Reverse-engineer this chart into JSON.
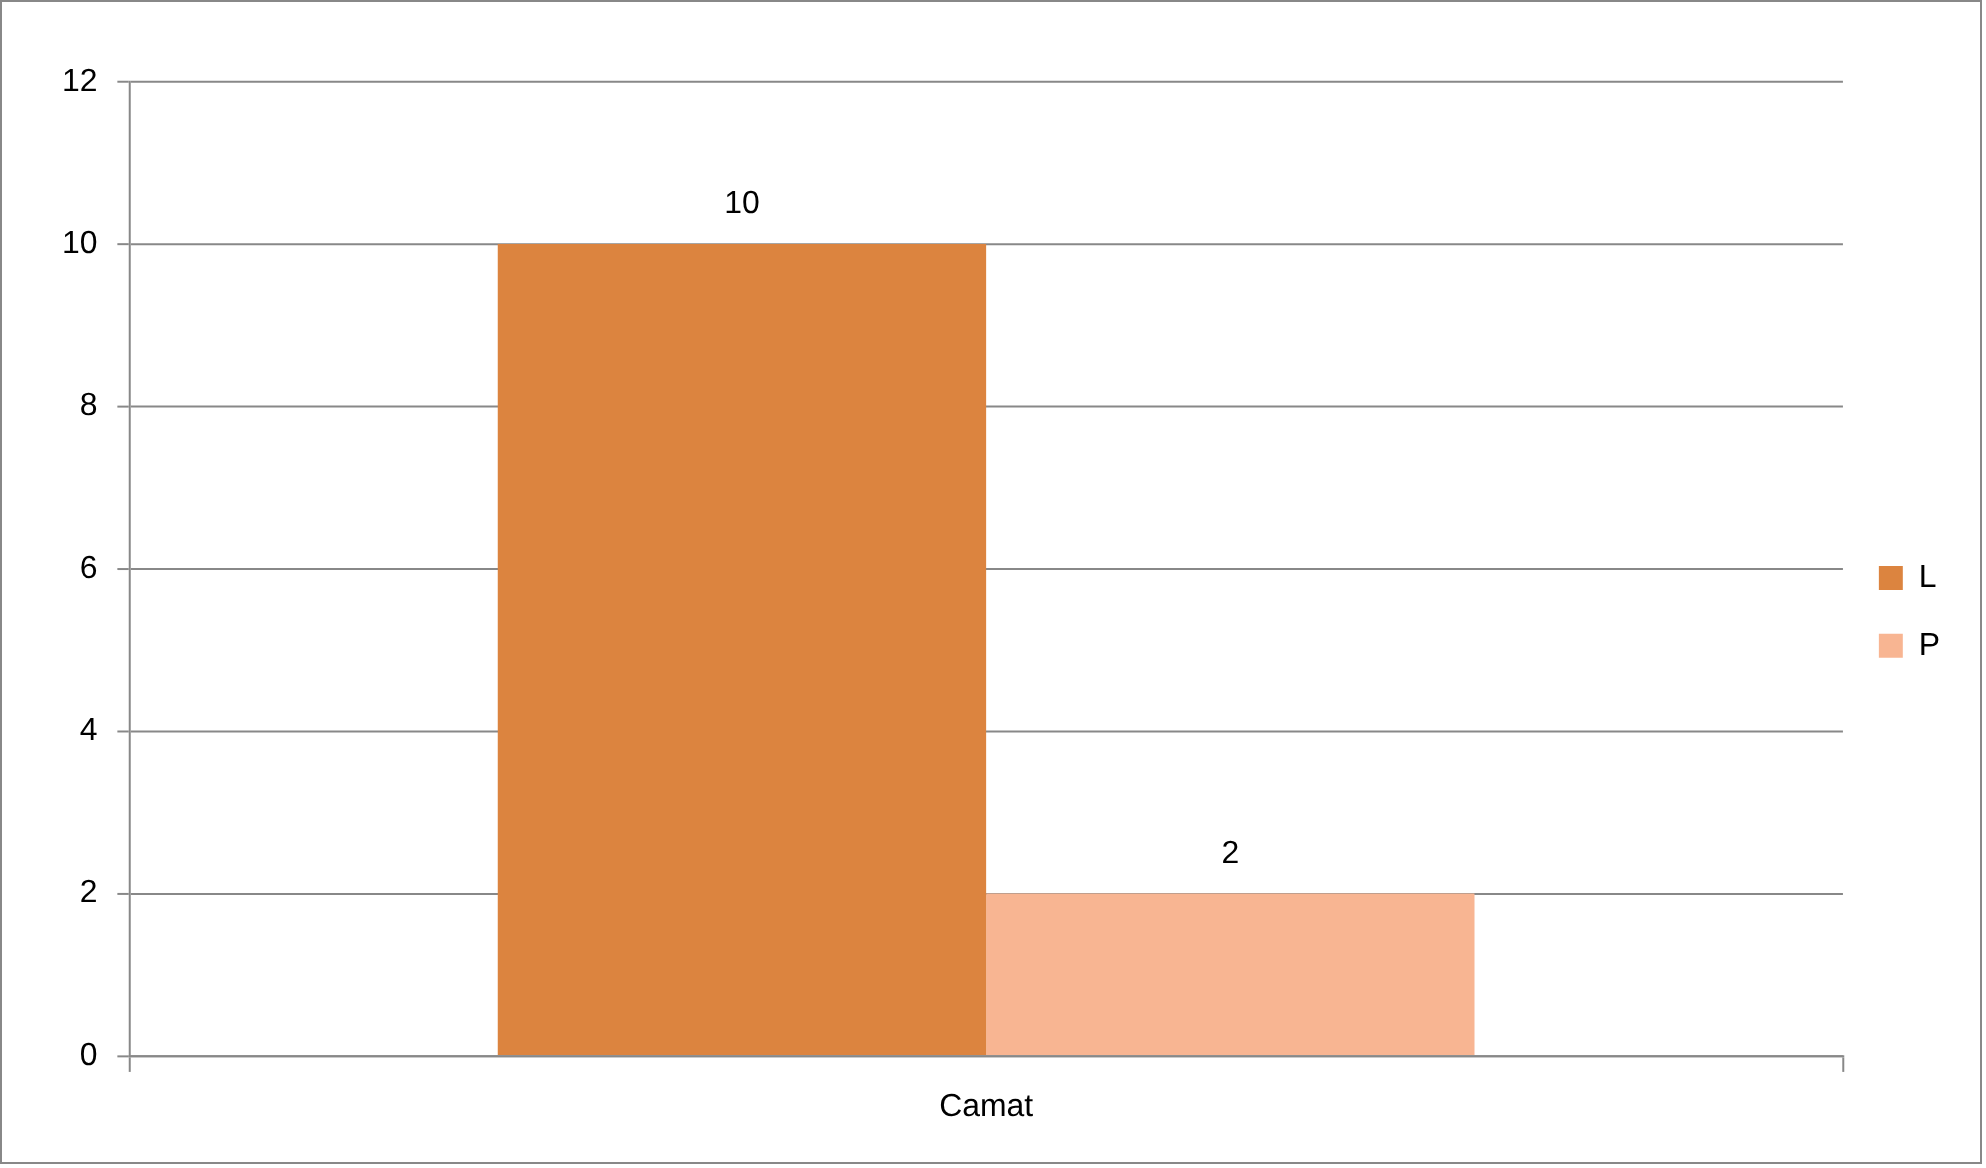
{
  "chart_data": {
    "type": "bar",
    "categories": [
      "Camat"
    ],
    "series": [
      {
        "name": "L",
        "color": "#dc843f",
        "values": [
          10
        ]
      },
      {
        "name": "P",
        "color": "#f8b592",
        "values": [
          2
        ]
      }
    ],
    "ylim": [
      0,
      12
    ],
    "yticks": [
      0,
      2,
      4,
      6,
      8,
      10,
      12
    ],
    "grid": "y",
    "legend": "right",
    "data_labels": true
  }
}
